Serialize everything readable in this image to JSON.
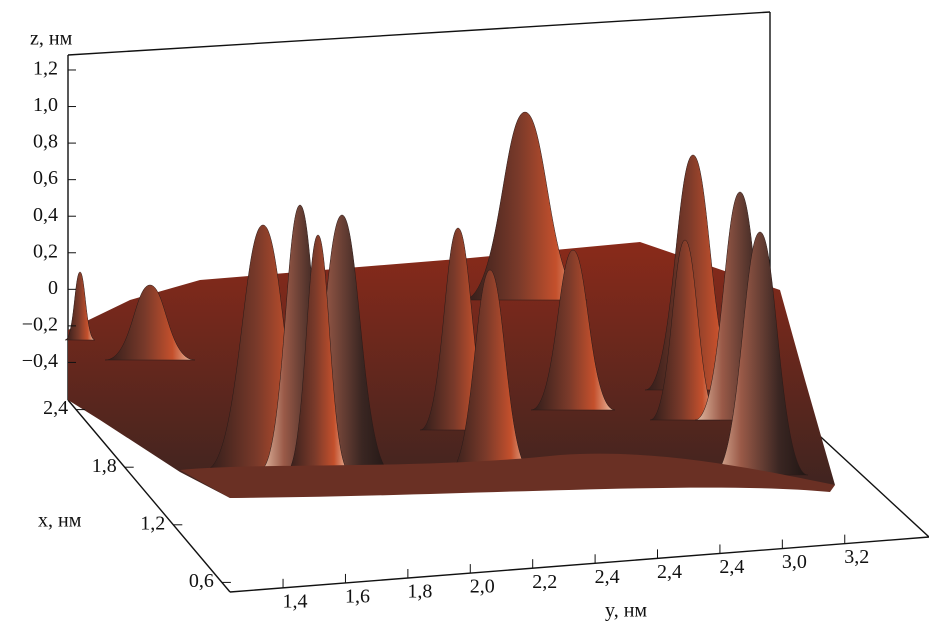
{
  "chart_data": {
    "type": "surface3d",
    "z_label": "z, нм",
    "x_label": "x, нм",
    "y_label": "y, нм",
    "zlim": [
      -0.6,
      1.3
    ],
    "zticks": [
      {
        "value": 1.2,
        "label": "1,2"
      },
      {
        "value": 1.0,
        "label": "1,0"
      },
      {
        "value": 0.8,
        "label": "0,8"
      },
      {
        "value": 0.6,
        "label": "0,6"
      },
      {
        "value": 0.4,
        "label": "0,4"
      },
      {
        "value": 0.2,
        "label": "0,2"
      },
      0,
      {
        "value": -0.2,
        "label": "−0,2"
      },
      {
        "value": -0.4,
        "label": "−0,4"
      }
    ],
    "xlim": [
      0.5,
      2.5
    ],
    "xticks": [
      {
        "value": 2.4,
        "label": "2,4"
      },
      {
        "value": 1.8,
        "label": "1,8"
      },
      {
        "value": 1.2,
        "label": "1,2"
      },
      {
        "value": 0.6,
        "label": "0,6"
      }
    ],
    "y_categories": [
      "1,4",
      "1,6",
      "1,8",
      "2,0",
      "2,2",
      "2,4",
      "2,4",
      "2,4",
      "3,0",
      "3,2"
    ]
  }
}
